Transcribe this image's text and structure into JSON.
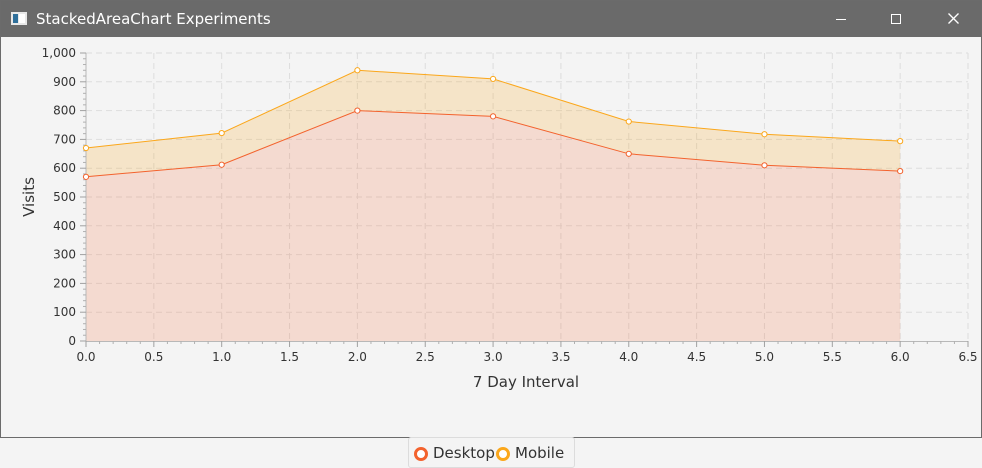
{
  "window": {
    "title": "StackedAreaChart Experiments",
    "controls": {
      "minimize": "minimize-icon",
      "maximize": "maximize-icon",
      "close": "close-icon"
    }
  },
  "chart_data": {
    "type": "area",
    "stacked": true,
    "title": "",
    "xlabel": "7 Day Interval",
    "ylabel": "Visits",
    "xlim": [
      0,
      6.5
    ],
    "ylim": [
      0,
      1000
    ],
    "x_ticks": [
      "0.0",
      "0.5",
      "1.0",
      "1.5",
      "2.0",
      "2.5",
      "3.0",
      "3.5",
      "4.0",
      "4.5",
      "5.0",
      "5.5",
      "6.0",
      "6.5"
    ],
    "y_ticks": [
      "0",
      "100",
      "200",
      "300",
      "400",
      "500",
      "600",
      "700",
      "800",
      "900",
      "1,000"
    ],
    "grid": true,
    "legend_position": "bottom",
    "x": [
      0,
      1,
      2,
      3,
      4,
      5,
      6
    ],
    "series": [
      {
        "name": "Desktop",
        "values": [
          570,
          612,
          800,
          780,
          650,
          610,
          590
        ],
        "color": "#f3622d"
      },
      {
        "name": "Mobile",
        "values": [
          100,
          110,
          140,
          130,
          112,
          108,
          104
        ],
        "color": "#fba71b"
      }
    ]
  }
}
